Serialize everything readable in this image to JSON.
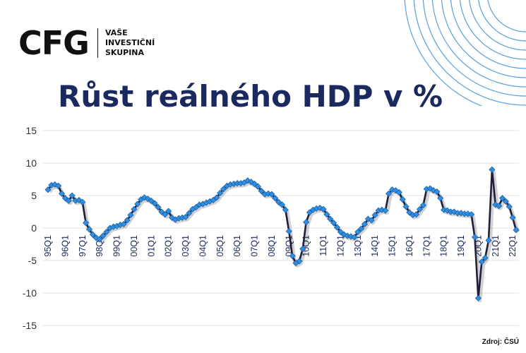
{
  "logo": {
    "mark": "CFG",
    "line1": "VAŠE",
    "line2": "INVESTIČNÍ",
    "line3": "SKUPINA"
  },
  "title": "Růst reálného HDP v %",
  "source": "Zdroj: ČSÚ",
  "colors": {
    "title": "#1b2a5e",
    "line": "#1f1f3a",
    "marker": "#2f8fe0",
    "marker_stroke": "#1a5fa8",
    "deco": "#3a8fd8",
    "grid": "#e3e3e3"
  },
  "chart_data": {
    "type": "line",
    "title": "Růst reálného HDP v %",
    "xlabel": "",
    "ylabel": "",
    "ylim": [
      -15,
      15
    ],
    "yticks": [
      15,
      10,
      5,
      0,
      -5,
      -10,
      -15
    ],
    "grid": true,
    "legend": "none",
    "tick_labels": [
      "95Q1",
      "96Q1",
      "97Q1",
      "98Q1",
      "99Q1",
      "00Q1",
      "01Q1",
      "02Q1",
      "03Q1",
      "04Q1",
      "05Q1",
      "06Q1",
      "07Q1",
      "08Q1",
      "09Q1",
      "10Q1",
      "11Q1",
      "12Q1",
      "13Q1",
      "14Q1",
      "15Q1",
      "16Q1",
      "17Q1",
      "18Q1",
      "19Q1",
      "20Q1",
      "21Q1",
      "22Q1"
    ],
    "series": [
      {
        "values": [
          5.9,
          6.6,
          6.7,
          6.5,
          5.3,
          4.6,
          4.2,
          5.0,
          4.2,
          4.3,
          4.0,
          0.8,
          -0.2,
          -1.0,
          -1.5,
          -1.7,
          -1.2,
          -0.6,
          0.0,
          0.2,
          0.3,
          0.5,
          0.6,
          1.2,
          2.0,
          2.9,
          3.7,
          4.4,
          4.7,
          4.5,
          4.2,
          3.8,
          3.2,
          2.5,
          2.1,
          2.6,
          1.6,
          1.3,
          1.5,
          1.6,
          1.7,
          2.3,
          2.9,
          3.2,
          3.6,
          3.7,
          3.9,
          4.1,
          4.3,
          4.7,
          5.4,
          6.0,
          6.5,
          6.7,
          6.8,
          6.9,
          6.9,
          7.0,
          7.3,
          7.1,
          6.8,
          6.4,
          5.7,
          5.2,
          5.3,
          5.2,
          4.6,
          4.0,
          3.6,
          2.8,
          -0.5,
          -4.3,
          -5.4,
          -5.1,
          -3.2,
          0.9,
          2.4,
          2.8,
          3.0,
          3.1,
          2.9,
          2.1,
          1.4,
          0.8,
          0.1,
          -0.6,
          -1.0,
          -1.2,
          -1.3,
          -1.4,
          -0.6,
          -0.1,
          0.6,
          1.4,
          1.2,
          2.0,
          2.7,
          2.8,
          2.7,
          5.3,
          5.9,
          5.8,
          5.5,
          4.4,
          3.3,
          2.4,
          2.0,
          2.1,
          2.9,
          3.5,
          6.0,
          6.1,
          5.8,
          5.6,
          4.6,
          2.8,
          2.7,
          2.5,
          2.5,
          2.3,
          2.3,
          2.2,
          2.2,
          2.1,
          -1.4,
          -10.8,
          -5.2,
          -4.6,
          -1.9,
          9.0,
          3.6,
          3.4,
          4.6,
          4.1,
          3.3,
          1.6,
          -0.3
        ]
      }
    ]
  }
}
